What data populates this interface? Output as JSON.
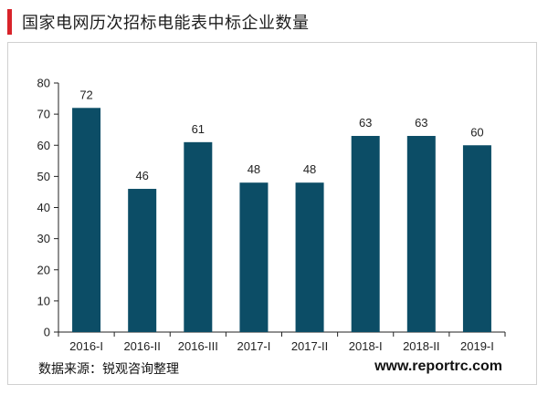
{
  "title": "国家电网历次招标电能表中标企业数量",
  "source": "数据来源：锐观咨询整理",
  "website": "www.reportrc.com",
  "colors": {
    "bar": "#0c4d66",
    "accent": "#d8232a",
    "axis": "#222222"
  },
  "chart_data": {
    "type": "bar",
    "categories": [
      "2016-I",
      "2016-II",
      "2016-III",
      "2017-I",
      "2017-II",
      "2018-I",
      "2018-II",
      "2019-I"
    ],
    "values": [
      72,
      46,
      61,
      48,
      48,
      63,
      63,
      60
    ],
    "ylim": [
      0,
      80
    ],
    "yticks": [
      0,
      10,
      20,
      30,
      40,
      50,
      60,
      70,
      80
    ],
    "grid": false,
    "legend": "none"
  }
}
